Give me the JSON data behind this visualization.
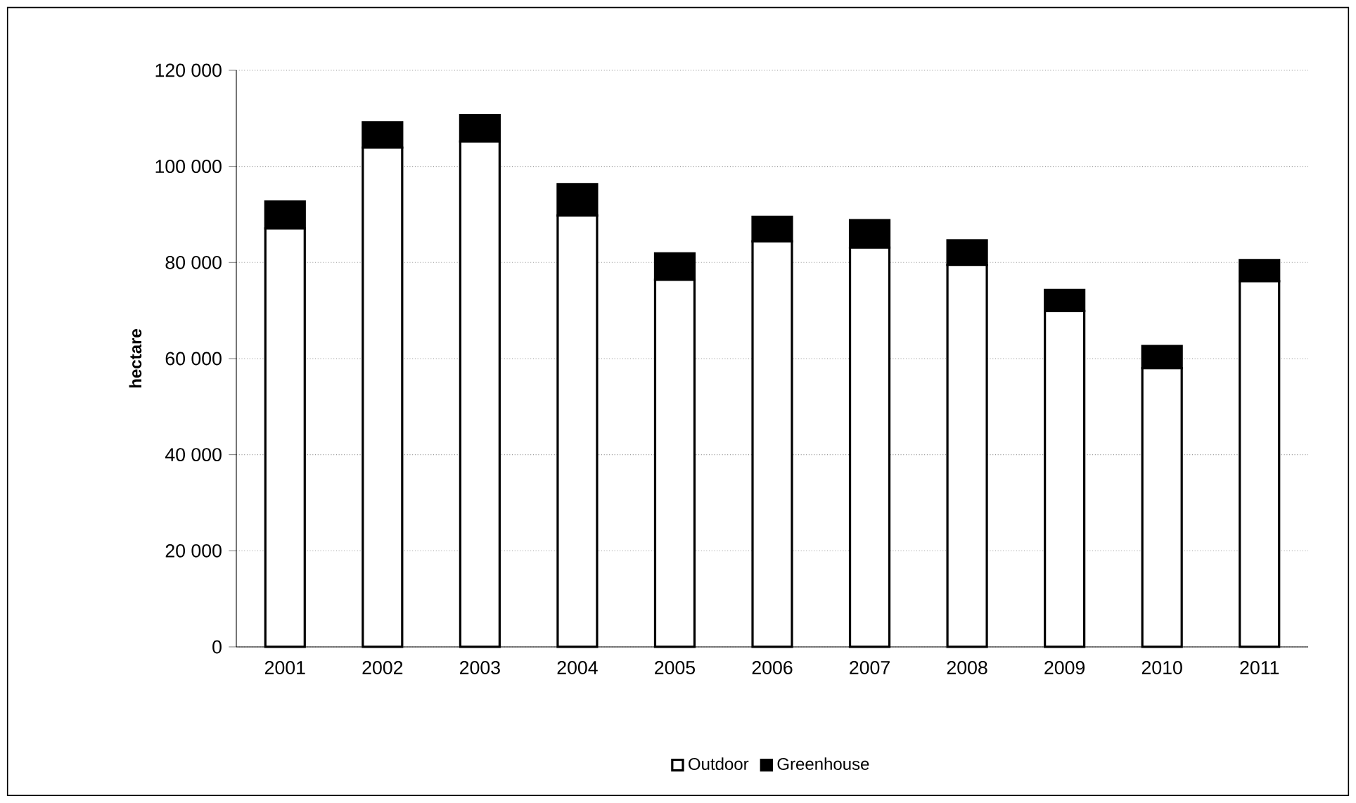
{
  "chart_data": {
    "type": "bar",
    "stacked": true,
    "ylabel": "hectare",
    "categories": [
      "2001",
      "2002",
      "2003",
      "2004",
      "2005",
      "2006",
      "2007",
      "2008",
      "2009",
      "2010",
      "2011"
    ],
    "series": [
      {
        "name": "Outdoor",
        "color": "#ffffff",
        "values": [
          87100,
          103900,
          105200,
          89800,
          76400,
          84400,
          83100,
          79500,
          69900,
          58000,
          76100
        ]
      },
      {
        "name": "Greenhouse",
        "color": "#000000",
        "values": [
          5600,
          5300,
          5500,
          6500,
          5500,
          5100,
          5700,
          5100,
          4400,
          4600,
          4400
        ]
      }
    ],
    "ylim": [
      0,
      120000
    ],
    "yticks": [
      {
        "value": 0,
        "label": "0"
      },
      {
        "value": 20000,
        "label": "20 000"
      },
      {
        "value": 40000,
        "label": "40 000"
      },
      {
        "value": 60000,
        "label": "60 000"
      },
      {
        "value": 80000,
        "label": "80 000"
      },
      {
        "value": 100000,
        "label": "100 000"
      },
      {
        "value": 120000,
        "label": "120 000"
      }
    ],
    "grid": "y",
    "legend": "bottom"
  }
}
